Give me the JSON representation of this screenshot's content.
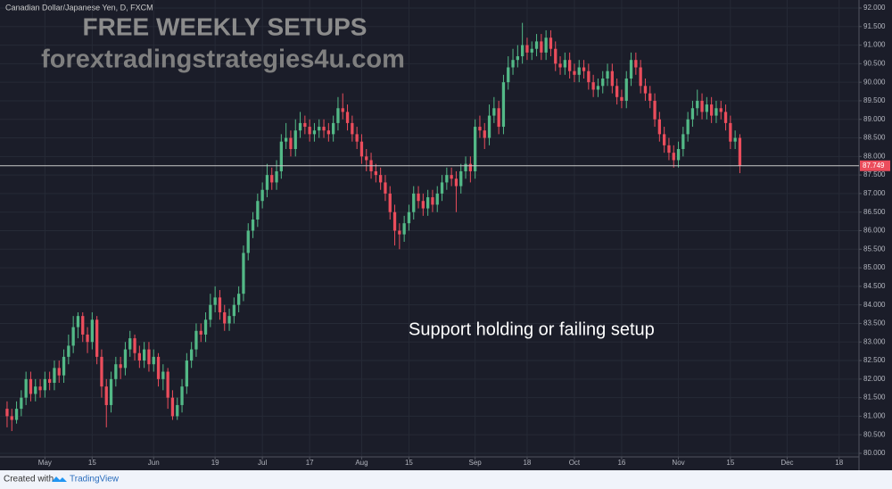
{
  "chart_data": {
    "type": "candlestick",
    "title": "Canadian Dollar/Japanese Yen, D, FXCM",
    "watermark": [
      "FREE WEEKLY SETUPS",
      "forextradingstrategies4u.com"
    ],
    "annotation": "Support holding or failing setup",
    "footer": [
      "Created with",
      "TradingView"
    ],
    "up_color": "#53b987",
    "down_color": "#eb4d5c",
    "grid": true,
    "price_line": 87.749,
    "xlim": [
      -1.5,
      180.2
    ],
    "xticks": [
      {
        "value": 8,
        "label": "May"
      },
      {
        "value": 18,
        "label": "15"
      },
      {
        "value": 31,
        "label": "Jun"
      },
      {
        "value": 44,
        "label": "19"
      },
      {
        "value": 54,
        "label": "Jul"
      },
      {
        "value": 64,
        "label": "17"
      },
      {
        "value": 75,
        "label": "Aug"
      },
      {
        "value": 85,
        "label": "15"
      },
      {
        "value": 99,
        "label": "Sep"
      },
      {
        "value": 110,
        "label": "18"
      },
      {
        "value": 120,
        "label": "Oct"
      },
      {
        "value": 130,
        "label": "16"
      },
      {
        "value": 142,
        "label": "Nov"
      },
      {
        "value": 153,
        "label": "15"
      },
      {
        "value": 165,
        "label": "Dec"
      },
      {
        "value": 176,
        "label": "18"
      }
    ],
    "ylim": [
      79.904,
      92.216
    ],
    "yticks": [
      {
        "value": 80,
        "label": "80.000"
      },
      {
        "value": 80.5,
        "label": "80.500"
      },
      {
        "value": 81,
        "label": "81.000"
      },
      {
        "value": 81.5,
        "label": "81.500"
      },
      {
        "value": 82,
        "label": "82.000"
      },
      {
        "value": 82.5,
        "label": "82.500"
      },
      {
        "value": 83,
        "label": "83.000"
      },
      {
        "value": 83.5,
        "label": "83.500"
      },
      {
        "value": 84,
        "label": "84.000"
      },
      {
        "value": 84.5,
        "label": "84.500"
      },
      {
        "value": 85,
        "label": "85.000"
      },
      {
        "value": 85.5,
        "label": "85.500"
      },
      {
        "value": 86,
        "label": "86.000"
      },
      {
        "value": 86.5,
        "label": "86.500"
      },
      {
        "value": 87,
        "label": "87.000"
      },
      {
        "value": 87.5,
        "label": "87.500"
      },
      {
        "value": 88,
        "label": "88.000"
      },
      {
        "value": 88.5,
        "label": "88.500"
      },
      {
        "value": 89,
        "label": "89.000"
      },
      {
        "value": 89.5,
        "label": "89.500"
      },
      {
        "value": 90,
        "label": "90.000"
      },
      {
        "value": 90.5,
        "label": "90.500"
      },
      {
        "value": 91,
        "label": "91.000"
      },
      {
        "value": 91.5,
        "label": "91.500"
      },
      {
        "value": 92,
        "label": "92.000"
      }
    ],
    "open": [
      81.2,
      81.0,
      80.9,
      81.2,
      81.5,
      82.0,
      81.6,
      81.8,
      81.7,
      82.0,
      81.9,
      82.3,
      82.1,
      82.6,
      82.9,
      83.4,
      83.7,
      83.2,
      83.0,
      83.6,
      82.6,
      81.8,
      81.3,
      82.0,
      82.4,
      82.3,
      82.8,
      83.1,
      82.7,
      82.5,
      82.8,
      82.4,
      82.6,
      82.0,
      82.2,
      81.5,
      81.0,
      81.3,
      81.8,
      82.5,
      82.8,
      83.3,
      83.2,
      83.6,
      84.0,
      84.2,
      83.8,
      83.5,
      83.7,
      84.0,
      84.3,
      85.4,
      86.0,
      86.3,
      86.8,
      87.1,
      87.5,
      87.3,
      87.6,
      88.4,
      88.5,
      88.2,
      88.7,
      88.9,
      88.8,
      88.6,
      88.7,
      88.8,
      88.7,
      88.6,
      88.9,
      89.3,
      89.2,
      88.9,
      88.6,
      88.4,
      88.0,
      87.9,
      87.6,
      87.5,
      87.3,
      87.0,
      86.5,
      86.0,
      85.9,
      86.2,
      86.5,
      87.0,
      86.8,
      86.6,
      86.9,
      86.7,
      87.0,
      87.3,
      87.5,
      87.4,
      87.2,
      87.6,
      87.8,
      87.6,
      88.8,
      88.7,
      88.5,
      89.1,
      89.3,
      88.8,
      90.0,
      90.4,
      90.6,
      90.7,
      91.0,
      90.8,
      90.9,
      91.1,
      90.8,
      91.2,
      90.9,
      90.5,
      90.4,
      90.6,
      90.3,
      90.2,
      90.4,
      90.3,
      90.0,
      89.8,
      89.9,
      90.1,
      90.3,
      89.9,
      89.6,
      89.5,
      90.1,
      90.6,
      90.4,
      89.9,
      89.7,
      89.5,
      89.0,
      88.6,
      88.3,
      88.1,
      87.9,
      88.2,
      88.6,
      89.0,
      89.3,
      89.5,
      89.2,
      89.4,
      89.1,
      89.3,
      89.2,
      88.9,
      88.4,
      88.5
    ],
    "high": [
      81.4,
      81.2,
      81.4,
      81.7,
      82.2,
      82.2,
      82.0,
      82.0,
      82.2,
      82.2,
      82.5,
      82.5,
      82.8,
      83.2,
      83.7,
      83.8,
      83.8,
      83.4,
      83.8,
      83.7,
      82.8,
      82.0,
      82.2,
      82.6,
      82.6,
      83.0,
      83.3,
      83.2,
      82.9,
      83.0,
      83.0,
      82.8,
      82.7,
      82.4,
      82.3,
      81.7,
      81.5,
      82.0,
      82.7,
      83.0,
      83.5,
      83.5,
      83.8,
      84.3,
      84.5,
      84.4,
      84.0,
      83.9,
      84.2,
      84.5,
      85.6,
      86.2,
      86.5,
      87.0,
      87.3,
      87.8,
      87.7,
      87.9,
      88.6,
      88.9,
      88.7,
      89.0,
      89.2,
      89.1,
      89.0,
      88.9,
      89.0,
      89.0,
      88.9,
      89.1,
      89.6,
      89.7,
      89.4,
      89.1,
      88.8,
      88.6,
      88.2,
      88.1,
      87.8,
      87.7,
      87.5,
      87.2,
      86.7,
      86.2,
      86.4,
      86.7,
      87.2,
      87.2,
      87.0,
      87.1,
      87.1,
      87.2,
      87.5,
      87.7,
      87.7,
      87.6,
      87.8,
      88.0,
      88.0,
      89.0,
      89.1,
      88.9,
      89.4,
      89.6,
      89.5,
      90.2,
      90.7,
      90.9,
      91.0,
      91.6,
      91.2,
      91.1,
      91.3,
      91.3,
      91.4,
      91.4,
      91.1,
      90.7,
      90.8,
      90.8,
      90.5,
      90.6,
      90.6,
      90.5,
      90.2,
      90.1,
      90.3,
      90.5,
      90.5,
      90.1,
      89.8,
      90.3,
      90.8,
      90.8,
      90.6,
      90.1,
      89.9,
      89.7,
      89.2,
      88.8,
      88.5,
      88.3,
      88.4,
      88.8,
      89.2,
      89.5,
      89.8,
      89.7,
      89.6,
      89.6,
      89.5,
      89.5,
      89.4,
      89.1,
      88.7,
      88.6
    ],
    "low": [
      80.7,
      80.6,
      80.8,
      81.0,
      81.3,
      81.4,
      81.4,
      81.5,
      81.5,
      81.7,
      81.7,
      81.9,
      81.9,
      82.4,
      82.7,
      83.1,
      83.0,
      82.7,
      82.8,
      82.4,
      81.5,
      80.7,
      81.1,
      81.8,
      82.0,
      82.1,
      82.6,
      82.5,
      82.3,
      82.3,
      82.2,
      82.2,
      81.8,
      81.7,
      81.2,
      80.9,
      80.9,
      81.1,
      81.6,
      82.3,
      82.6,
      83.0,
      83.0,
      83.4,
      83.8,
      83.6,
      83.3,
      83.3,
      83.5,
      83.8,
      84.1,
      85.2,
      85.8,
      86.1,
      86.6,
      86.9,
      87.1,
      87.1,
      87.4,
      88.2,
      88.0,
      88.0,
      88.5,
      88.6,
      88.4,
      88.4,
      88.5,
      88.5,
      88.4,
      88.4,
      88.7,
      89.0,
      88.7,
      88.4,
      88.2,
      87.8,
      87.6,
      87.4,
      87.3,
      87.1,
      86.8,
      86.3,
      85.6,
      85.5,
      85.7,
      86.0,
      86.3,
      86.6,
      86.4,
      86.4,
      86.5,
      86.5,
      86.8,
      87.1,
      87.2,
      86.5,
      87.0,
      87.4,
      87.3,
      87.4,
      88.5,
      88.2,
      88.3,
      88.9,
      88.6,
      88.6,
      89.8,
      90.2,
      90.4,
      90.5,
      90.6,
      90.6,
      90.7,
      90.6,
      90.6,
      90.7,
      90.3,
      90.2,
      90.2,
      90.1,
      90.0,
      90.0,
      90.1,
      89.8,
      89.6,
      89.6,
      89.7,
      89.9,
      89.7,
      89.4,
      89.3,
      89.3,
      89.9,
      90.2,
      89.7,
      89.5,
      89.3,
      88.8,
      88.4,
      88.1,
      87.9,
      87.7,
      87.7,
      88.0,
      88.4,
      88.8,
      89.1,
      89.0,
      89.0,
      88.9,
      88.9,
      89.0,
      88.7,
      88.2,
      88.2,
      87.55
    ],
    "close": [
      81.0,
      80.9,
      81.2,
      81.5,
      82.0,
      81.6,
      81.8,
      81.7,
      82.0,
      81.9,
      82.3,
      82.1,
      82.6,
      82.9,
      83.4,
      83.7,
      83.2,
      83.0,
      83.6,
      82.6,
      81.8,
      81.3,
      82.0,
      82.4,
      82.3,
      82.8,
      83.1,
      82.7,
      82.5,
      82.8,
      82.4,
      82.6,
      82.0,
      82.2,
      81.5,
      81.0,
      81.3,
      81.8,
      82.5,
      82.8,
      83.3,
      83.2,
      83.6,
      84.0,
      84.2,
      83.8,
      83.5,
      83.7,
      84.0,
      84.3,
      85.4,
      86.0,
      86.3,
      86.8,
      87.1,
      87.5,
      87.3,
      87.6,
      88.4,
      88.5,
      88.2,
      88.7,
      88.9,
      88.8,
      88.6,
      88.7,
      88.8,
      88.7,
      88.6,
      88.9,
      89.3,
      89.2,
      88.9,
      88.6,
      88.4,
      88.0,
      87.9,
      87.6,
      87.5,
      87.3,
      87.0,
      86.5,
      86.0,
      85.9,
      86.2,
      86.5,
      87.0,
      86.8,
      86.6,
      86.9,
      86.7,
      87.0,
      87.3,
      87.5,
      87.4,
      87.2,
      87.6,
      87.8,
      87.6,
      88.8,
      88.7,
      88.5,
      89.1,
      89.3,
      88.8,
      90.0,
      90.4,
      90.6,
      90.7,
      91.0,
      90.8,
      90.9,
      91.1,
      90.8,
      91.2,
      90.9,
      90.5,
      90.4,
      90.6,
      90.3,
      90.2,
      90.4,
      90.3,
      90.0,
      89.8,
      89.9,
      90.1,
      90.3,
      89.9,
      89.6,
      89.5,
      90.1,
      90.6,
      90.4,
      89.9,
      89.7,
      89.5,
      89.0,
      88.6,
      88.3,
      88.1,
      87.9,
      88.2,
      88.6,
      89.0,
      89.3,
      89.5,
      89.2,
      89.4,
      89.1,
      89.3,
      89.2,
      88.9,
      88.4,
      88.5,
      87.75
    ]
  }
}
